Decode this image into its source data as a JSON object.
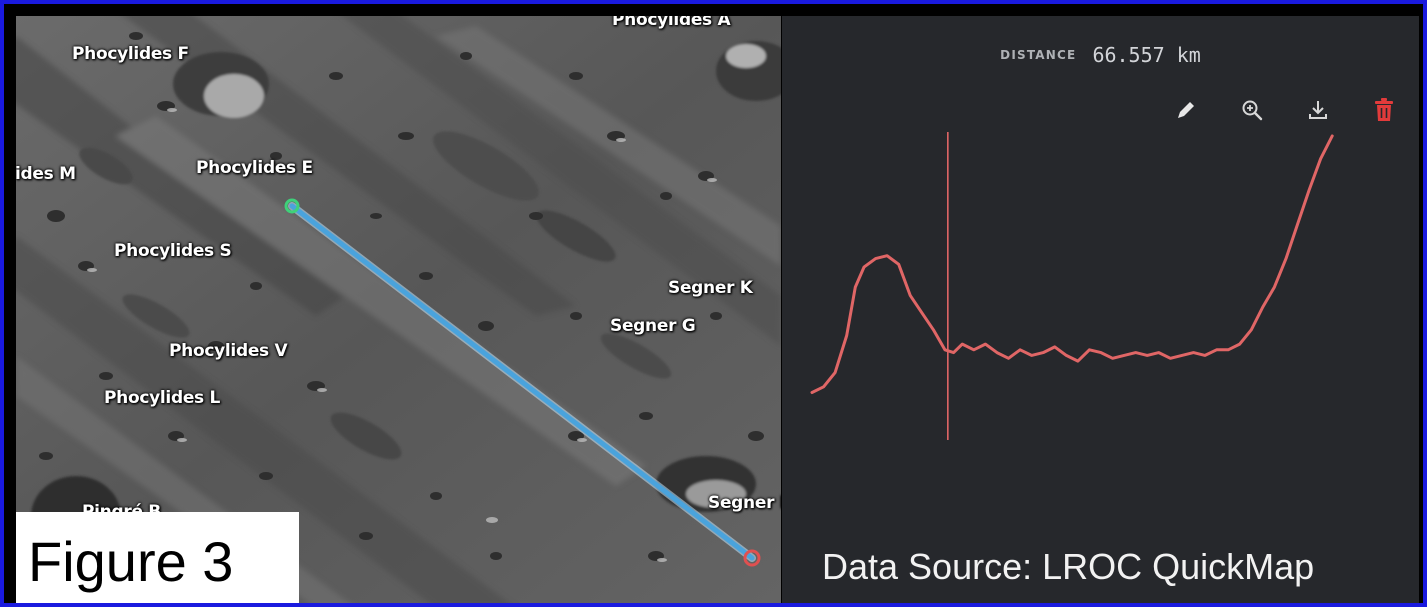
{
  "figure": {
    "label": "Figure 3"
  },
  "map": {
    "labels": {
      "phocylides_a": "Phocylides A",
      "phocylides_f": "Phocylides F",
      "phocylides_m": "ides M",
      "phocylides_e": "Phocylides E",
      "phocylides_s": "Phocylides S",
      "phocylides_v": "Phocylides V",
      "phocylides_l": "Phocylides L",
      "segner_k": "Segner K",
      "segner_g": "Segner G",
      "segner_partial": "Segner I",
      "pingre_partial": "Pingré B"
    },
    "track_color": "#4aa3dc",
    "start_marker_color": "#3fd17a",
    "end_marker_color": "#e05050"
  },
  "panel": {
    "distance_label": "DISTANCE",
    "distance_value": "66.557 km",
    "tools": [
      "pencil-icon",
      "zoom-in-icon",
      "download-icon",
      "trash-icon"
    ],
    "profile_color": "#e06666",
    "cursor_position_fraction": 0.235,
    "source": "Data Source: LROC QuickMap"
  },
  "chart_data": {
    "type": "line",
    "title": "",
    "xlabel": "",
    "ylabel": "",
    "x_range": [
      0,
      1
    ],
    "y_range": [
      0,
      1
    ],
    "series": [
      {
        "values": [
          [
            0.0,
            0.1
          ],
          [
            0.02,
            0.12
          ],
          [
            0.04,
            0.17
          ],
          [
            0.06,
            0.3
          ],
          [
            0.075,
            0.47
          ],
          [
            0.09,
            0.54
          ],
          [
            0.11,
            0.57
          ],
          [
            0.13,
            0.58
          ],
          [
            0.15,
            0.55
          ],
          [
            0.17,
            0.44
          ],
          [
            0.19,
            0.38
          ],
          [
            0.21,
            0.32
          ],
          [
            0.23,
            0.25
          ],
          [
            0.245,
            0.24
          ],
          [
            0.26,
            0.27
          ],
          [
            0.28,
            0.25
          ],
          [
            0.3,
            0.27
          ],
          [
            0.32,
            0.24
          ],
          [
            0.34,
            0.22
          ],
          [
            0.36,
            0.25
          ],
          [
            0.38,
            0.23
          ],
          [
            0.4,
            0.24
          ],
          [
            0.42,
            0.26
          ],
          [
            0.44,
            0.23
          ],
          [
            0.46,
            0.21
          ],
          [
            0.48,
            0.25
          ],
          [
            0.5,
            0.24
          ],
          [
            0.52,
            0.22
          ],
          [
            0.54,
            0.23
          ],
          [
            0.56,
            0.24
          ],
          [
            0.58,
            0.23
          ],
          [
            0.6,
            0.24
          ],
          [
            0.62,
            0.22
          ],
          [
            0.64,
            0.23
          ],
          [
            0.66,
            0.24
          ],
          [
            0.68,
            0.23
          ],
          [
            0.7,
            0.25
          ],
          [
            0.72,
            0.25
          ],
          [
            0.74,
            0.27
          ],
          [
            0.76,
            0.32
          ],
          [
            0.78,
            0.4
          ],
          [
            0.8,
            0.47
          ],
          [
            0.82,
            0.57
          ],
          [
            0.84,
            0.69
          ],
          [
            0.86,
            0.81
          ],
          [
            0.88,
            0.92
          ],
          [
            0.9,
            1.0
          ]
        ]
      }
    ]
  }
}
